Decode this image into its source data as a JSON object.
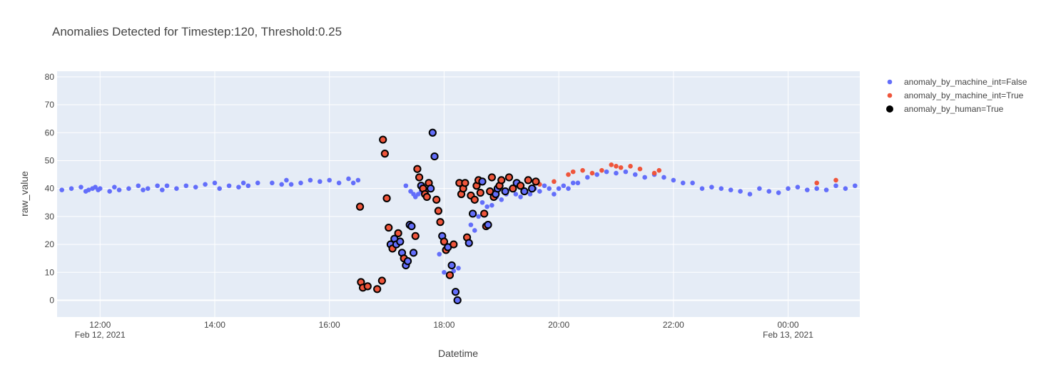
{
  "chart_data": {
    "type": "scatter",
    "title": "Anomalies Detected for Timestep:120, Threshold:0.25",
    "xlabel": "Datetime",
    "ylabel": "raw_value",
    "x_range": [
      "2021-02-12 11:15",
      "2021-02-13 01:15"
    ],
    "y_range": [
      -6,
      82
    ],
    "y_ticks": [
      0,
      10,
      20,
      30,
      40,
      50,
      60,
      70,
      80
    ],
    "x_ticks": [
      {
        "time": "2021-02-12 12:00",
        "label": "12:00",
        "sublabel": "Feb 12, 2021"
      },
      {
        "time": "2021-02-12 14:00",
        "label": "14:00",
        "sublabel": ""
      },
      {
        "time": "2021-02-12 16:00",
        "label": "16:00",
        "sublabel": ""
      },
      {
        "time": "2021-02-12 18:00",
        "label": "18:00",
        "sublabel": ""
      },
      {
        "time": "2021-02-12 20:00",
        "label": "20:00",
        "sublabel": ""
      },
      {
        "time": "2021-02-12 22:00",
        "label": "22:00",
        "sublabel": ""
      },
      {
        "time": "2021-02-13 00:00",
        "label": "00:00",
        "sublabel": "Feb 13, 2021"
      }
    ],
    "grid": true,
    "legend_position": "top-right",
    "colors": {
      "false_series": "#636efa",
      "true_series": "#ef553b",
      "human_outline": "#000000",
      "plot_bg": "#e5ecf6",
      "grid": "#ffffff"
    },
    "series": [
      {
        "name": "anomaly_by_machine_int=False",
        "x": [
          "2021-02-12 11:20",
          "2021-02-12 11:30",
          "2021-02-12 11:40",
          "2021-02-12 11:45",
          "2021-02-12 11:48",
          "2021-02-12 11:52",
          "2021-02-12 11:55",
          "2021-02-12 11:58",
          "2021-02-12 12:00",
          "2021-02-12 12:10",
          "2021-02-12 12:15",
          "2021-02-12 12:20",
          "2021-02-12 12:30",
          "2021-02-12 12:40",
          "2021-02-12 12:45",
          "2021-02-12 12:50",
          "2021-02-12 13:00",
          "2021-02-12 13:05",
          "2021-02-12 13:10",
          "2021-02-12 13:20",
          "2021-02-12 13:30",
          "2021-02-12 13:40",
          "2021-02-12 13:50",
          "2021-02-12 14:00",
          "2021-02-12 14:05",
          "2021-02-12 14:15",
          "2021-02-12 14:25",
          "2021-02-12 14:30",
          "2021-02-12 14:35",
          "2021-02-12 14:45",
          "2021-02-12 15:00",
          "2021-02-12 15:10",
          "2021-02-12 15:15",
          "2021-02-12 15:20",
          "2021-02-12 15:30",
          "2021-02-12 15:40",
          "2021-02-12 15:50",
          "2021-02-12 16:00",
          "2021-02-12 16:10",
          "2021-02-12 16:20",
          "2021-02-12 16:25",
          "2021-02-12 16:30",
          "2021-02-12 17:20",
          "2021-02-12 17:25",
          "2021-02-12 17:28",
          "2021-02-12 17:30",
          "2021-02-12 17:33",
          "2021-02-12 17:36",
          "2021-02-12 17:40",
          "2021-02-12 17:45",
          "2021-02-12 17:55",
          "2021-02-12 18:00",
          "2021-02-12 18:05",
          "2021-02-12 18:10",
          "2021-02-12 18:15",
          "2021-02-12 18:28",
          "2021-02-12 18:32",
          "2021-02-12 18:36",
          "2021-02-12 18:40",
          "2021-02-12 18:45",
          "2021-02-12 18:50",
          "2021-02-12 18:55",
          "2021-02-12 19:00",
          "2021-02-12 19:05",
          "2021-02-12 19:10",
          "2021-02-12 19:15",
          "2021-02-12 19:20",
          "2021-02-12 19:25",
          "2021-02-12 19:30",
          "2021-02-12 19:35",
          "2021-02-12 19:40",
          "2021-02-12 19:45",
          "2021-02-12 19:50",
          "2021-02-12 19:55",
          "2021-02-12 20:00",
          "2021-02-12 20:05",
          "2021-02-12 20:10",
          "2021-02-12 20:15",
          "2021-02-12 20:20",
          "2021-02-12 20:30",
          "2021-02-12 20:40",
          "2021-02-12 20:50",
          "2021-02-12 21:00",
          "2021-02-12 21:10",
          "2021-02-12 21:20",
          "2021-02-12 21:30",
          "2021-02-12 21:40",
          "2021-02-12 21:50",
          "2021-02-12 22:00",
          "2021-02-12 22:10",
          "2021-02-12 22:20",
          "2021-02-12 22:30",
          "2021-02-12 22:40",
          "2021-02-12 22:50",
          "2021-02-12 23:00",
          "2021-02-12 23:10",
          "2021-02-12 23:20",
          "2021-02-12 23:30",
          "2021-02-12 23:40",
          "2021-02-12 23:50",
          "2021-02-13 00:00",
          "2021-02-13 00:10",
          "2021-02-13 00:20",
          "2021-02-13 00:30",
          "2021-02-13 00:40",
          "2021-02-13 00:50",
          "2021-02-13 01:00",
          "2021-02-13 01:10"
        ],
        "y": [
          39.5,
          40,
          40.5,
          39,
          39.5,
          40,
          40.5,
          39.5,
          40,
          39,
          40.5,
          39.5,
          40,
          41,
          39.5,
          40,
          41,
          39.5,
          41,
          40,
          41,
          40.5,
          41.5,
          42,
          40,
          41,
          40.5,
          42,
          41,
          42,
          42,
          41.5,
          43,
          41.5,
          42,
          43,
          42.5,
          43,
          42,
          43.5,
          42,
          43,
          41,
          39,
          38,
          37,
          38,
          39,
          40,
          39.5,
          16.5,
          10,
          8.5,
          10.5,
          11.5,
          27,
          25,
          30,
          35,
          33.5,
          34,
          37,
          36,
          38,
          40,
          38,
          37,
          39,
          38,
          40,
          39,
          41,
          40,
          38,
          40,
          41,
          40,
          42,
          42,
          44,
          45,
          46,
          45.5,
          46,
          45,
          44,
          45,
          44,
          43,
          42,
          42,
          40,
          40.5,
          40,
          39.5,
          39,
          38,
          40,
          39,
          38.5,
          40,
          40.5,
          39.5,
          40,
          39.5,
          41,
          40,
          41
        ]
      },
      {
        "name": "anomaly_by_machine_int=True",
        "x": [
          "2021-02-12 19:40",
          "2021-02-12 19:55",
          "2021-02-12 20:10",
          "2021-02-12 20:15",
          "2021-02-12 20:25",
          "2021-02-12 20:35",
          "2021-02-12 20:45",
          "2021-02-12 20:55",
          "2021-02-12 21:00",
          "2021-02-12 21:05",
          "2021-02-12 21:15",
          "2021-02-12 21:25",
          "2021-02-12 21:40",
          "2021-02-12 21:45",
          "2021-02-13 00:30",
          "2021-02-13 00:50"
        ],
        "y": [
          41.5,
          42.5,
          45,
          46,
          46.5,
          45.5,
          46.5,
          48.5,
          48,
          47.5,
          48,
          47,
          45.5,
          46.5,
          42,
          43
        ]
      },
      {
        "name": "anomaly_by_human=True",
        "x": [
          "2021-02-12 16:32",
          "2021-02-12 16:33",
          "2021-02-12 16:35",
          "2021-02-12 16:40",
          "2021-02-12 16:50",
          "2021-02-12 16:55",
          "2021-02-12 16:56",
          "2021-02-12 16:58",
          "2021-02-12 17:00",
          "2021-02-12 17:02",
          "2021-02-12 17:04",
          "2021-02-12 17:06",
          "2021-02-12 17:08",
          "2021-02-12 17:10",
          "2021-02-12 17:12",
          "2021-02-12 17:14",
          "2021-02-12 17:16",
          "2021-02-12 17:18",
          "2021-02-12 17:20",
          "2021-02-12 17:22",
          "2021-02-12 17:24",
          "2021-02-12 17:26",
          "2021-02-12 17:28",
          "2021-02-12 17:30",
          "2021-02-12 17:32",
          "2021-02-12 17:34",
          "2021-02-12 17:36",
          "2021-02-12 17:38",
          "2021-02-12 17:40",
          "2021-02-12 17:42",
          "2021-02-12 17:44",
          "2021-02-12 17:46",
          "2021-02-12 17:48",
          "2021-02-12 17:50",
          "2021-02-12 17:52",
          "2021-02-12 17:54",
          "2021-02-12 17:56",
          "2021-02-12 17:58",
          "2021-02-12 18:00",
          "2021-02-12 18:02",
          "2021-02-12 18:04",
          "2021-02-12 18:06",
          "2021-02-12 18:08",
          "2021-02-12 18:10",
          "2021-02-12 18:12",
          "2021-02-12 18:14",
          "2021-02-12 18:16",
          "2021-02-12 18:18",
          "2021-02-12 18:20",
          "2021-02-12 18:22",
          "2021-02-12 18:24",
          "2021-02-12 18:26",
          "2021-02-12 18:28",
          "2021-02-12 18:30",
          "2021-02-12 18:32",
          "2021-02-12 18:34",
          "2021-02-12 18:36",
          "2021-02-12 18:38",
          "2021-02-12 18:40",
          "2021-02-12 18:42",
          "2021-02-12 18:44",
          "2021-02-12 18:46",
          "2021-02-12 18:48",
          "2021-02-12 18:50",
          "2021-02-12 18:52",
          "2021-02-12 18:54",
          "2021-02-12 18:56",
          "2021-02-12 18:58",
          "2021-02-12 19:00",
          "2021-02-12 19:04",
          "2021-02-12 19:08",
          "2021-02-12 19:12",
          "2021-02-12 19:16",
          "2021-02-12 19:20",
          "2021-02-12 19:24",
          "2021-02-12 19:28",
          "2021-02-12 19:32",
          "2021-02-12 19:36"
        ],
        "machine": [
          1,
          1,
          1,
          1,
          1,
          1,
          1,
          1,
          1,
          1,
          0,
          1,
          0,
          0,
          1,
          0,
          0,
          1,
          0,
          0,
          0,
          0,
          0,
          1,
          1,
          1,
          0,
          1,
          1,
          1,
          1,
          0,
          0,
          0,
          1,
          1,
          1,
          0,
          1,
          1,
          0,
          1,
          0,
          1,
          0,
          0,
          1,
          1,
          1,
          1,
          1,
          0,
          1,
          0,
          1,
          1,
          1,
          1,
          0,
          1,
          1,
          0,
          1,
          1,
          1,
          0,
          0,
          1,
          1,
          0,
          1,
          1,
          0,
          1,
          0,
          1,
          0,
          1
        ],
        "y": [
          33.5,
          6.5,
          4.5,
          5,
          4,
          7,
          57.5,
          52.5,
          36.5,
          26,
          20,
          18.5,
          22,
          20,
          24,
          21,
          17,
          15,
          12.5,
          14,
          27,
          26.5,
          17,
          23,
          47,
          44,
          41,
          40,
          38,
          37,
          42,
          40,
          60,
          51.5,
          36,
          32,
          28,
          23,
          21,
          18,
          19,
          9,
          12.5,
          20,
          3,
          0,
          42,
          38,
          40,
          42,
          22.5,
          20.5,
          37.5,
          31,
          36,
          41,
          43,
          38.5,
          42.5,
          31,
          26.5,
          27,
          39,
          44,
          37,
          38,
          40,
          41,
          43,
          39,
          44,
          40,
          42,
          41,
          39,
          43,
          40,
          42.5
        ]
      }
    ]
  }
}
